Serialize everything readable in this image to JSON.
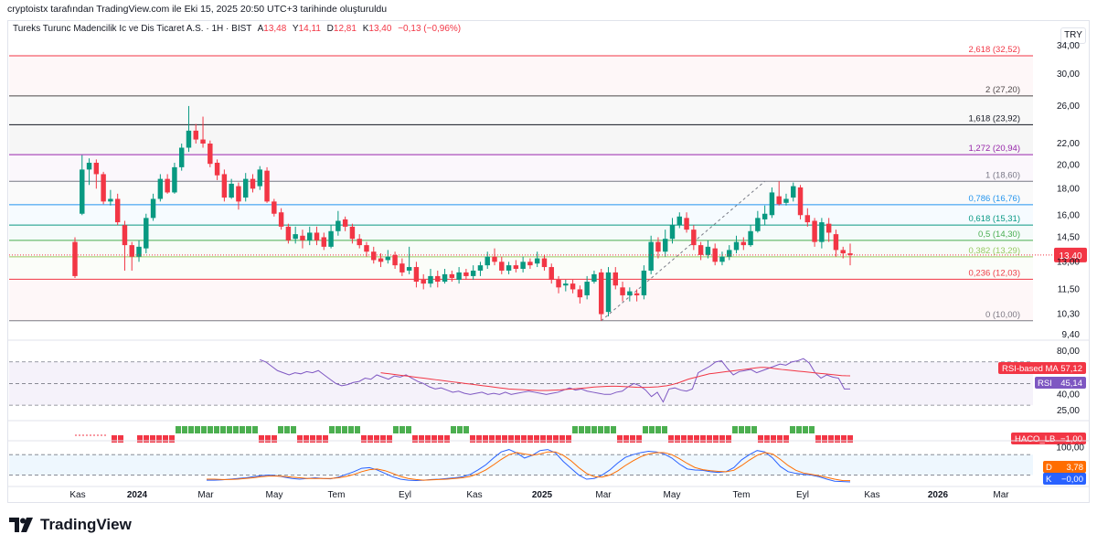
{
  "header": {
    "caption": "cryptoistx tarafından TradingView.com ile Eki 15, 2025 20:50 UTC+3 tarihinde oluşturuldu"
  },
  "legend": {
    "title": "Tureks Turunc Madencilik Ic ve Dis Ticaret A.S. · 1H · BIST",
    "open_label": "A",
    "open": "13,48",
    "high_label": "Y",
    "high": "14,11",
    "low_label": "D",
    "low": "12,81",
    "close_label": "K",
    "close": "13,40",
    "change": "−0,13 (−0,96%)"
  },
  "currency": "TRY",
  "brand": {
    "name": "TradingView"
  },
  "colors": {
    "up": "#089981",
    "down": "#f23645",
    "rsi": "#7e57c2",
    "rsi_ma": "#f23645",
    "k": "#2962ff",
    "d": "#ff6d00",
    "haco_up": "#4caf50",
    "haco_down": "#f23645"
  },
  "chart_data": [
    {
      "type": "candlestick",
      "name": "price",
      "ylim": [
        9.4,
        34.0
      ],
      "y_ticks": [
        "34,00",
        "30,00",
        "26,00",
        "22,00",
        "20,00",
        "18,00",
        "16,00",
        "14,50",
        "13,00",
        "11,50",
        "10,30",
        "9,40"
      ],
      "x_ticks": [
        "Kas",
        "2024",
        "Mar",
        "May",
        "Tem",
        "Eyl",
        "Kas",
        "2025",
        "Mar",
        "May",
        "Tem",
        "Eyl",
        "Kas",
        "2026",
        "Mar"
      ],
      "fib_levels": [
        {
          "label": "2,618 (32,52)",
          "value": 32.52,
          "color": "#f23645"
        },
        {
          "label": "2 (27,20)",
          "value": 27.2,
          "color": "#4a4a4a"
        },
        {
          "label": "1,618 (23,92)",
          "value": 23.92,
          "color": "#131722"
        },
        {
          "label": "1,272 (20,94)",
          "value": 20.94,
          "color": "#9c27b0"
        },
        {
          "label": "1 (18,60)",
          "value": 18.6,
          "color": "#787b86"
        },
        {
          "label": "0,786 (16,76)",
          "value": 16.76,
          "color": "#2196f3"
        },
        {
          "label": "0,618 (15,31)",
          "value": 15.31,
          "color": "#089981"
        },
        {
          "label": "0,5 (14,30)",
          "value": 14.3,
          "color": "#4caf50"
        },
        {
          "label": "0,382 (13,29)",
          "value": 13.29,
          "color": "#9ccc65"
        },
        {
          "label": "0,236 (12,03)",
          "value": 12.03,
          "color": "#f23645"
        },
        {
          "label": "0 (10,00)",
          "value": 10.0,
          "color": "#787b86"
        }
      ],
      "last_price_label": "13,40",
      "last_price": 13.4,
      "candles": [
        [
          14.2,
          12.2,
          14.5,
          12.1
        ],
        [
          16.1,
          19.6,
          20.9,
          16.0
        ],
        [
          19.6,
          20.2,
          20.6,
          18.3
        ],
        [
          20.2,
          19.2,
          20.5,
          18.0
        ],
        [
          19.2,
          17.0,
          19.4,
          16.8
        ],
        [
          17.0,
          17.2,
          17.9,
          16.7
        ],
        [
          17.2,
          15.5,
          17.6,
          15.3
        ],
        [
          15.3,
          14.0,
          15.6,
          12.5
        ],
        [
          14.0,
          13.3,
          14.2,
          12.5
        ],
        [
          13.3,
          13.9,
          14.3,
          13.0
        ],
        [
          13.8,
          15.8,
          16.1,
          13.5
        ],
        [
          15.8,
          17.2,
          17.6,
          15.6
        ],
        [
          17.2,
          18.8,
          19.2,
          17.0
        ],
        [
          18.8,
          17.7,
          19.2,
          17.6
        ],
        [
          17.7,
          19.8,
          20.2,
          17.6
        ],
        [
          19.8,
          21.6,
          22.0,
          19.5
        ],
        [
          21.6,
          23.3,
          26.0,
          21.2
        ],
        [
          23.3,
          22.4,
          24.0,
          22.0
        ],
        [
          22.4,
          22.0,
          24.8,
          21.6
        ],
        [
          22.0,
          20.1,
          22.3,
          19.8
        ],
        [
          20.2,
          19.1,
          20.5,
          18.7
        ],
        [
          19.2,
          17.3,
          19.6,
          17.0
        ],
        [
          17.3,
          18.4,
          18.8,
          17.2
        ],
        [
          18.2,
          17.0,
          18.5,
          16.4
        ],
        [
          17.3,
          18.8,
          19.3,
          17.0
        ],
        [
          18.8,
          18.0,
          19.2,
          17.7
        ],
        [
          18.2,
          19.6,
          19.9,
          17.9
        ],
        [
          19.5,
          17.0,
          19.8,
          16.9
        ],
        [
          17.0,
          16.1,
          17.2,
          15.9
        ],
        [
          16.2,
          15.2,
          16.5,
          15.0
        ],
        [
          15.2,
          14.3,
          15.4,
          14.1
        ],
        [
          14.4,
          14.7,
          15.2,
          14.1
        ],
        [
          14.6,
          14.3,
          15.0,
          13.8
        ],
        [
          14.3,
          14.8,
          15.2,
          14.0
        ],
        [
          14.8,
          14.3,
          15.2,
          14.0
        ],
        [
          14.5,
          13.9,
          14.8,
          13.7
        ],
        [
          13.9,
          14.9,
          15.3,
          13.8
        ],
        [
          14.9,
          15.6,
          16.3,
          14.6
        ],
        [
          15.7,
          15.2,
          15.9,
          14.9
        ],
        [
          15.2,
          14.4,
          15.4,
          14.1
        ],
        [
          14.4,
          14.0,
          14.7,
          13.8
        ],
        [
          14.0,
          13.6,
          14.2,
          13.3
        ],
        [
          13.6,
          13.1,
          13.9,
          12.9
        ],
        [
          13.2,
          13.0,
          13.5,
          12.7
        ],
        [
          13.1,
          13.3,
          13.7,
          12.9
        ],
        [
          13.4,
          12.8,
          13.6,
          12.6
        ],
        [
          12.9,
          12.4,
          13.2,
          12.2
        ],
        [
          12.5,
          12.7,
          13.9,
          12.3
        ],
        [
          12.7,
          11.9,
          13.0,
          11.6
        ],
        [
          12.0,
          11.8,
          12.3,
          11.5
        ],
        [
          11.8,
          12.2,
          12.6,
          11.6
        ],
        [
          12.2,
          11.9,
          12.5,
          11.6
        ],
        [
          11.9,
          12.3,
          12.6,
          11.8
        ],
        [
          12.3,
          12.1,
          12.5,
          11.9
        ],
        [
          12.0,
          12.4,
          12.7,
          11.8
        ],
        [
          12.4,
          12.2,
          12.6,
          12.0
        ],
        [
          12.2,
          12.5,
          12.8,
          12.0
        ],
        [
          12.5,
          12.8,
          13.0,
          12.2
        ],
        [
          12.8,
          13.3,
          13.6,
          12.6
        ],
        [
          13.3,
          13.0,
          13.8,
          12.8
        ],
        [
          13.0,
          12.5,
          13.3,
          12.3
        ],
        [
          12.5,
          12.8,
          13.0,
          12.3
        ],
        [
          12.8,
          12.6,
          13.1,
          12.4
        ],
        [
          12.6,
          13.0,
          13.3,
          12.4
        ],
        [
          13.0,
          12.8,
          13.2,
          12.6
        ],
        [
          12.9,
          13.2,
          13.6,
          12.7
        ],
        [
          13.2,
          12.7,
          13.4,
          12.5
        ],
        [
          12.7,
          12.0,
          12.9,
          11.8
        ],
        [
          12.0,
          11.6,
          12.2,
          11.3
        ],
        [
          11.7,
          11.8,
          12.0,
          11.4
        ],
        [
          11.8,
          11.5,
          12.0,
          11.3
        ],
        [
          11.5,
          11.1,
          11.7,
          10.8
        ],
        [
          11.2,
          11.9,
          12.2,
          11.0
        ],
        [
          11.9,
          12.3,
          12.5,
          11.8
        ],
        [
          12.4,
          10.3,
          12.6,
          10.0
        ],
        [
          10.4,
          12.4,
          12.7,
          10.2
        ],
        [
          12.4,
          11.7,
          12.7,
          11.5
        ],
        [
          11.6,
          11.2,
          11.9,
          10.9
        ],
        [
          11.2,
          11.4,
          11.6,
          10.9
        ],
        [
          11.3,
          11.2,
          11.5,
          10.9
        ],
        [
          11.2,
          12.5,
          12.8,
          11.0
        ],
        [
          12.5,
          14.2,
          14.6,
          12.3
        ],
        [
          14.2,
          13.6,
          14.5,
          13.2
        ],
        [
          13.6,
          14.4,
          15.0,
          13.3
        ],
        [
          14.4,
          15.3,
          15.8,
          14.1
        ],
        [
          15.3,
          15.9,
          16.2,
          15.1
        ],
        [
          15.8,
          15.0,
          16.2,
          14.8
        ],
        [
          15.0,
          14.0,
          15.3,
          13.7
        ],
        [
          14.0,
          13.4,
          14.2,
          13.1
        ],
        [
          13.4,
          13.9,
          14.3,
          13.2
        ],
        [
          13.8,
          13.0,
          14.1,
          12.8
        ],
        [
          13.0,
          13.3,
          13.6,
          12.8
        ],
        [
          13.3,
          13.7,
          14.0,
          13.1
        ],
        [
          13.7,
          14.2,
          14.6,
          13.5
        ],
        [
          14.2,
          14.0,
          14.5,
          13.7
        ],
        [
          14.0,
          14.9,
          15.3,
          13.9
        ],
        [
          14.9,
          15.8,
          16.3,
          14.8
        ],
        [
          15.7,
          16.1,
          16.7,
          15.3
        ],
        [
          16.0,
          17.7,
          18.1,
          15.8
        ],
        [
          17.4,
          16.8,
          18.6,
          16.7
        ],
        [
          16.9,
          17.2,
          17.6,
          16.7
        ],
        [
          17.3,
          18.2,
          18.5,
          17.0
        ],
        [
          18.1,
          16.0,
          18.3,
          15.7
        ],
        [
          16.0,
          15.5,
          16.5,
          15.2
        ],
        [
          15.6,
          14.2,
          15.8,
          13.9
        ],
        [
          14.2,
          15.5,
          15.8,
          13.8
        ],
        [
          15.4,
          14.8,
          15.8,
          14.2
        ],
        [
          14.7,
          13.7,
          15.0,
          13.3
        ],
        [
          13.7,
          13.5,
          13.9,
          13.2
        ],
        [
          13.5,
          13.4,
          14.1,
          12.8
        ]
      ]
    },
    {
      "type": "line",
      "name": "RSI",
      "label": "RSI",
      "value_label": "45,14",
      "ma_label": "RSI-based MA",
      "ma_value_label": "57,12",
      "ylim": [
        20,
        85
      ],
      "y_ticks": [
        "80,00",
        "40,00",
        "25,00"
      ],
      "levels": [
        70,
        50,
        30
      ],
      "rsi_values": [
        72,
        70,
        66,
        62,
        60,
        58,
        60,
        59,
        61,
        60,
        62,
        58,
        54,
        50,
        48,
        49,
        51,
        52,
        55,
        54,
        58,
        56,
        54,
        57,
        56,
        58,
        55,
        52,
        50,
        47,
        45,
        46,
        44,
        42,
        43,
        41,
        40,
        41,
        42,
        40,
        41,
        40,
        42,
        40,
        41,
        42,
        43,
        42,
        41,
        40,
        41,
        42,
        44,
        46,
        44,
        45,
        43,
        42,
        41,
        40,
        40,
        42,
        43,
        47,
        50,
        48,
        44,
        38,
        42,
        33,
        45,
        46,
        44,
        43,
        45,
        60,
        63,
        66,
        70,
        71,
        64,
        58,
        61,
        62,
        63,
        60,
        62,
        64,
        66,
        68,
        67,
        70,
        71,
        73,
        69,
        60,
        55,
        58,
        56,
        55,
        45,
        45
      ],
      "ma_values": [
        60,
        59.5,
        59,
        58.5,
        58,
        57.5,
        57,
        56.5,
        56,
        55.5,
        55,
        54.5,
        54,
        53.5,
        53,
        52.5,
        52,
        51.5,
        51,
        50.5,
        50,
        49.5,
        49,
        48.5,
        48,
        47.5,
        47,
        46.5,
        46,
        45.5,
        45,
        44.8,
        44.6,
        44.4,
        44.2,
        44,
        43.8,
        43.6,
        43.6,
        43.6,
        43.8,
        44,
        44.2,
        44.5,
        44.8,
        45,
        45.3,
        45.6,
        46,
        46.4,
        46.8,
        47,
        47.2,
        47.4,
        47.5,
        47.5,
        47.4,
        47.2,
        47,
        46.8,
        46.6,
        46.5,
        46.5,
        46.6,
        46.8,
        47,
        47.5,
        48,
        48.8,
        49.8,
        51,
        52.5,
        54,
        55,
        56,
        57,
        58,
        59,
        59.5,
        60,
        60.5,
        61,
        61.5,
        62,
        62.5,
        63,
        63.5,
        64,
        64.5,
        65,
        65,
        64.5,
        64,
        63.5,
        63,
        62.6,
        62.2,
        61.8,
        61.4,
        61,
        60.6,
        60.2,
        59.8,
        59.4,
        59,
        58.6,
        58.2,
        57.8,
        57.4,
        57.2,
        57.12
      ],
      "ma_start_index": 4
    },
    {
      "type": "bar",
      "name": "HACO_LB",
      "label": "HACO_LB",
      "value_label": "−1,00",
      "segments": [
        [
          0,
          1,
          -1
        ],
        [
          4,
          9,
          -1
        ],
        [
          10,
          22,
          1
        ],
        [
          23,
          25,
          -1
        ],
        [
          26,
          28,
          1
        ],
        [
          29,
          33,
          -1
        ],
        [
          34,
          38,
          1
        ],
        [
          39,
          43,
          -1
        ],
        [
          44,
          46,
          1
        ],
        [
          47,
          52,
          -1
        ],
        [
          53,
          55,
          1
        ],
        [
          56,
          58,
          -1
        ],
        [
          59,
          71,
          -1
        ],
        [
          72,
          78,
          1
        ],
        [
          79,
          82,
          -1
        ],
        [
          83,
          86,
          1
        ],
        [
          87,
          96,
          -1
        ],
        [
          97,
          100,
          1
        ],
        [
          101,
          105,
          -1
        ],
        [
          106,
          109,
          1
        ],
        [
          110,
          116,
          -1
        ]
      ]
    },
    {
      "type": "line",
      "name": "Stochastic",
      "k_label": "K",
      "k_value_label": "−0,00",
      "d_label": "D",
      "d_value_label": "3,78",
      "ylim": [
        0,
        110
      ],
      "y_ticks": [
        "100,00"
      ],
      "levels": [
        80,
        20
      ],
      "k_values": [
        5,
        5,
        6,
        8,
        10,
        12,
        15,
        18,
        20,
        18,
        14,
        10,
        8,
        10,
        12,
        10,
        9,
        14,
        22,
        30,
        40,
        42,
        35,
        25,
        15,
        8,
        5,
        4,
        5,
        7,
        8,
        10,
        12,
        15,
        22,
        35,
        50,
        70,
        88,
        95,
        85,
        70,
        78,
        92,
        95,
        85,
        60,
        40,
        20,
        8,
        10,
        20,
        35,
        55,
        72,
        80,
        86,
        90,
        88,
        82,
        70,
        52,
        38,
        35,
        34,
        30,
        28,
        30,
        42,
        65,
        80,
        92,
        88,
        70,
        45,
        30,
        25,
        22,
        20,
        15,
        8,
        2,
        1,
        0
      ],
      "d_values": [
        8,
        8,
        7,
        7,
        8,
        10,
        12,
        15,
        17,
        17,
        16,
        14,
        12,
        10,
        10,
        10,
        10,
        12,
        16,
        22,
        30,
        36,
        38,
        33,
        25,
        16,
        10,
        7,
        5,
        6,
        7,
        8,
        10,
        12,
        16,
        24,
        35,
        50,
        66,
        80,
        86,
        82,
        78,
        82,
        88,
        88,
        78,
        62,
        42,
        25,
        15,
        14,
        20,
        32,
        48,
        62,
        74,
        82,
        86,
        86,
        80,
        68,
        54,
        42,
        36,
        33,
        31,
        30,
        34,
        48,
        64,
        78,
        86,
        82,
        66,
        48,
        34,
        26,
        22,
        18,
        13,
        8,
        4,
        3.78
      ],
      "start_index": 10
    }
  ]
}
